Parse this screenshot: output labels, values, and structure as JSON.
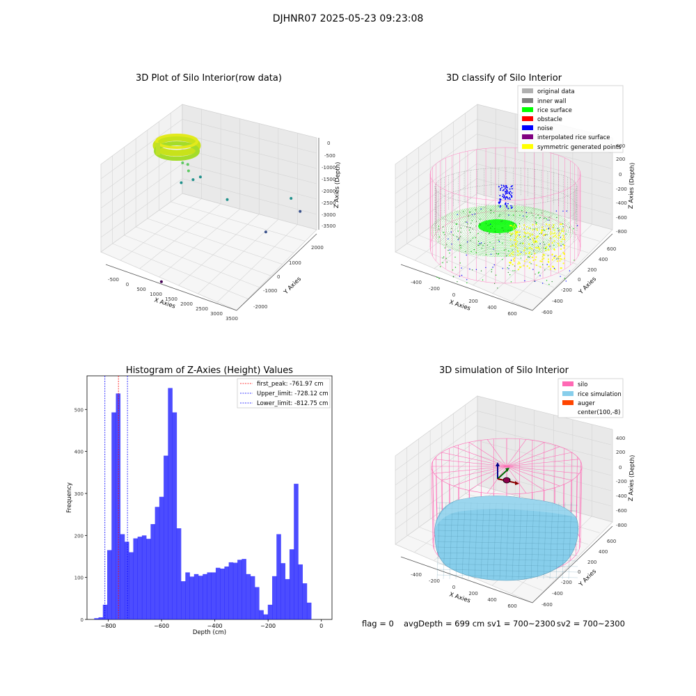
{
  "suptitle": "DJHNR07 2025-05-23 09:23:08",
  "footer": {
    "flag": "flag = 0",
    "avg_depth": "avgDepth = 699 cm",
    "sv1": "sv1 = 700~2300",
    "sv2": "sv2 = 700~2300"
  },
  "chart_data": [
    {
      "type": "scatter",
      "title": "3D Plot of Silo Interior(row data)",
      "xlabel": "X Axies",
      "ylabel": "Y Axies",
      "zlabel": "Z Axies (Depth)",
      "x_ticks": [
        "-500",
        "0",
        "500",
        "1000",
        "1500",
        "2000",
        "2500",
        "3000",
        "3500"
      ],
      "y_ticks": [
        "2000",
        "1000",
        "0",
        "-1000",
        "-2000"
      ],
      "z_ticks": [
        "0",
        "-500",
        "-1000",
        "-1500",
        "-2000",
        "-2500",
        "-3000",
        "-3500"
      ],
      "colormap": [
        "#440154",
        "#3b528b",
        "#21918c",
        "#5ec962",
        "#fde725"
      ],
      "outlier_points": [
        {
          "x": 500,
          "y": 200,
          "z": -700
        },
        {
          "x": 600,
          "y": 300,
          "z": -800
        },
        {
          "x": 500,
          "y": 500,
          "z": -1300
        },
        {
          "x": 700,
          "y": 400,
          "z": -1500
        },
        {
          "x": 800,
          "y": 600,
          "z": -1500
        },
        {
          "x": 400,
          "y": 300,
          "z": -1700
        },
        {
          "x": 1500,
          "y": 800,
          "z": -2300
        },
        {
          "x": 2900,
          "y": 1700,
          "z": -2300
        },
        {
          "x": 3300,
          "y": 1500,
          "z": -2500
        },
        {
          "x": 2800,
          "y": 600,
          "z": -2900
        },
        {
          "x": 1200,
          "y": -2000,
          "z": -3700
        }
      ]
    },
    {
      "type": "scatter",
      "title": "3D classify of Silo Interior",
      "xlabel": "X Axies",
      "ylabel": "Y Axies",
      "zlabel": "Z Axies (Depth)",
      "x_ticks": [
        "-400",
        "-200",
        "0",
        "200",
        "400",
        "600"
      ],
      "y_ticks": [
        "600",
        "400",
        "200",
        "0",
        "-200",
        "-400",
        "-600"
      ],
      "z_ticks": [
        "400",
        "200",
        "0",
        "-200",
        "-400",
        "-600",
        "-800"
      ],
      "legend_position": "top-right",
      "legend": [
        {
          "label": "original data",
          "color": "#b0b0b0"
        },
        {
          "label": "inner wall",
          "color": "#808080"
        },
        {
          "label": "rice surface",
          "color": "#00ff00"
        },
        {
          "label": "obstacle",
          "color": "#ff0000"
        },
        {
          "label": "noise",
          "color": "#0000ff"
        },
        {
          "label": "interpolated rice surface",
          "color": "#800080"
        },
        {
          "label": "symmetric generated points",
          "color": "#ffff00"
        }
      ]
    },
    {
      "type": "bar",
      "title": "Histogram of Z-Axies (Height) Values",
      "xlabel": "Depth (cm)",
      "ylabel": "Frequency",
      "xlim": [
        -880,
        40
      ],
      "ylim": [
        0,
        580
      ],
      "x_ticks": [
        -800,
        -600,
        -400,
        -200,
        0
      ],
      "x_tick_labels": [
        "−800",
        "−600",
        "−400",
        "−200",
        "0"
      ],
      "y_ticks": [
        0,
        100,
        200,
        300,
        400,
        500
      ],
      "y_tick_labels": [
        "0",
        "100",
        "200",
        "300",
        "400",
        "500"
      ],
      "bar_color": "#0000ff",
      "bin_width": 16.3,
      "bin_start": -853,
      "values": [
        3,
        5,
        35,
        165,
        493,
        538,
        203,
        185,
        160,
        193,
        197,
        200,
        192,
        227,
        268,
        292,
        390,
        551,
        493,
        217,
        91,
        112,
        102,
        108,
        104,
        108,
        112,
        112,
        123,
        121,
        126,
        136,
        135,
        142,
        144,
        108,
        103,
        77,
        22,
        12,
        35,
        103,
        203,
        134,
        96,
        167,
        323,
        131,
        86,
        40
      ],
      "legend_position": "top-right",
      "lines": [
        {
          "label": "first_peak: -761.97 cm",
          "x": -761.97,
          "color": "#ff0000"
        },
        {
          "label": "Upper_limit: -728.12 cm",
          "x": -728.12,
          "color": "#0000ff"
        },
        {
          "label": "Lower_limit: -812.75 cm",
          "x": -812.75,
          "color": "#0000ff"
        }
      ]
    },
    {
      "type": "area",
      "title": "3D simulation of Silo Interior",
      "xlabel": "X Axies",
      "ylabel": "Y Axies",
      "zlabel": "Z Axies (Depth)",
      "x_ticks": [
        "-400",
        "-200",
        "0",
        "200",
        "400",
        "600"
      ],
      "y_ticks": [
        "600",
        "400",
        "200",
        "0",
        "-200",
        "-400",
        "-600"
      ],
      "z_ticks": [
        "400",
        "200",
        "0",
        "-200",
        "-400",
        "-600",
        "-800"
      ],
      "legend_position": "top-right",
      "legend": [
        {
          "label": "silo",
          "color": "#ff69b4"
        },
        {
          "label": "rice simulation",
          "color": "#87ceeb"
        },
        {
          "label": "auger",
          "color": "#ff4500"
        },
        {
          "label": "center(100,-8)",
          "color": "#ffffff"
        }
      ]
    }
  ]
}
